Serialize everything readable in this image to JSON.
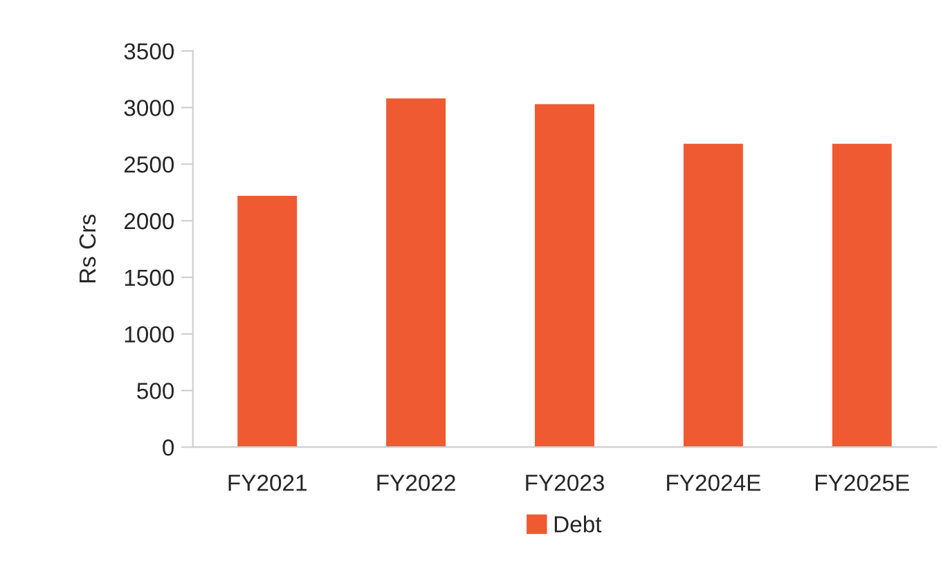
{
  "chart_data": {
    "type": "bar",
    "ylabel": "Rs Crs",
    "categories": [
      "FY2021",
      "FY2022",
      "FY2023",
      "FY2024E",
      "FY2025E"
    ],
    "series": [
      {
        "name": "Debt",
        "color": "#f05a32",
        "values": [
          2220,
          3080,
          3030,
          2680,
          2680
        ]
      }
    ],
    "ylim": [
      0,
      3500
    ],
    "yticks": [
      0,
      500,
      1000,
      1500,
      2000,
      2500,
      3000,
      3500
    ],
    "grid": false,
    "legend": "bottom"
  }
}
